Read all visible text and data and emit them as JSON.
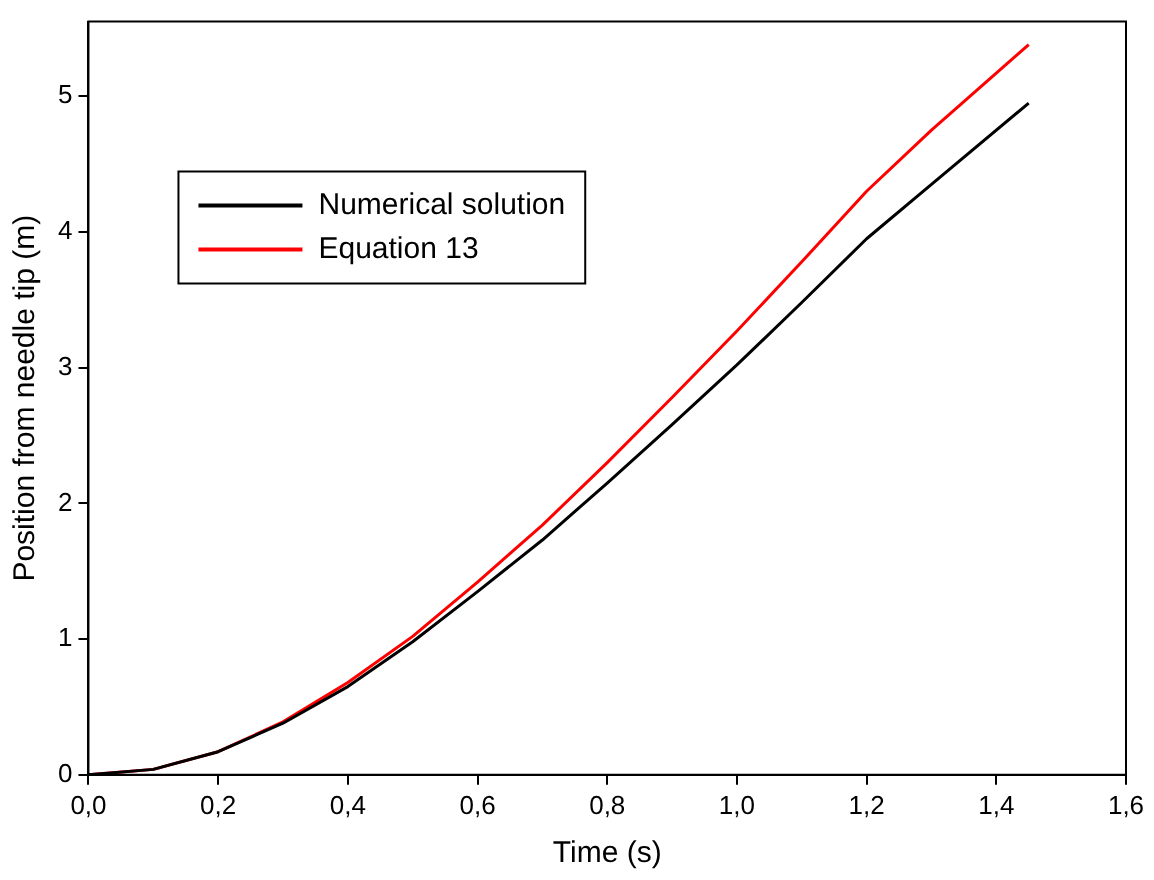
{
  "chart_data": {
    "type": "line",
    "xlabel": "Time (s)",
    "ylabel": "Position from needle tip (m)",
    "legend": "top left",
    "marker": "none",
    "line_style": "solid",
    "grid": false,
    "xlim": [
      0,
      1.6
    ],
    "ylim": [
      0,
      5.55
    ],
    "xticks": [
      {
        "value": 0,
        "label": "0,0"
      },
      {
        "value": 0.2,
        "label": "0,2"
      },
      {
        "value": 0.4,
        "label": "0,4"
      },
      {
        "value": 0.6,
        "label": "0,6"
      },
      {
        "value": 0.8,
        "label": "0,8"
      },
      {
        "value": 1.0,
        "label": "1,0"
      },
      {
        "value": 1.2,
        "label": "1,2"
      },
      {
        "value": 1.4,
        "label": "1,4"
      },
      {
        "value": 1.6,
        "label": "1,6"
      }
    ],
    "yticks": [
      0,
      1,
      2,
      3,
      4,
      5
    ],
    "x": [
      0,
      0.1,
      0.2,
      0.3,
      0.4,
      0.5,
      0.6,
      0.7,
      0.8,
      0.9,
      1.0,
      1.1,
      1.2,
      1.3,
      1.45
    ],
    "series": [
      {
        "name": "Numerical solution",
        "color": "#000000",
        "values": [
          0,
          0.04,
          0.17,
          0.38,
          0.65,
          0.98,
          1.35,
          1.73,
          2.15,
          2.58,
          3.02,
          3.48,
          3.95,
          4.35,
          4.95
        ]
      },
      {
        "name": "Equation 13",
        "color": "#ff0000",
        "values": [
          0,
          0.04,
          0.17,
          0.39,
          0.68,
          1.02,
          1.42,
          1.84,
          2.3,
          2.78,
          3.27,
          3.78,
          4.3,
          4.75,
          5.38
        ]
      }
    ]
  }
}
